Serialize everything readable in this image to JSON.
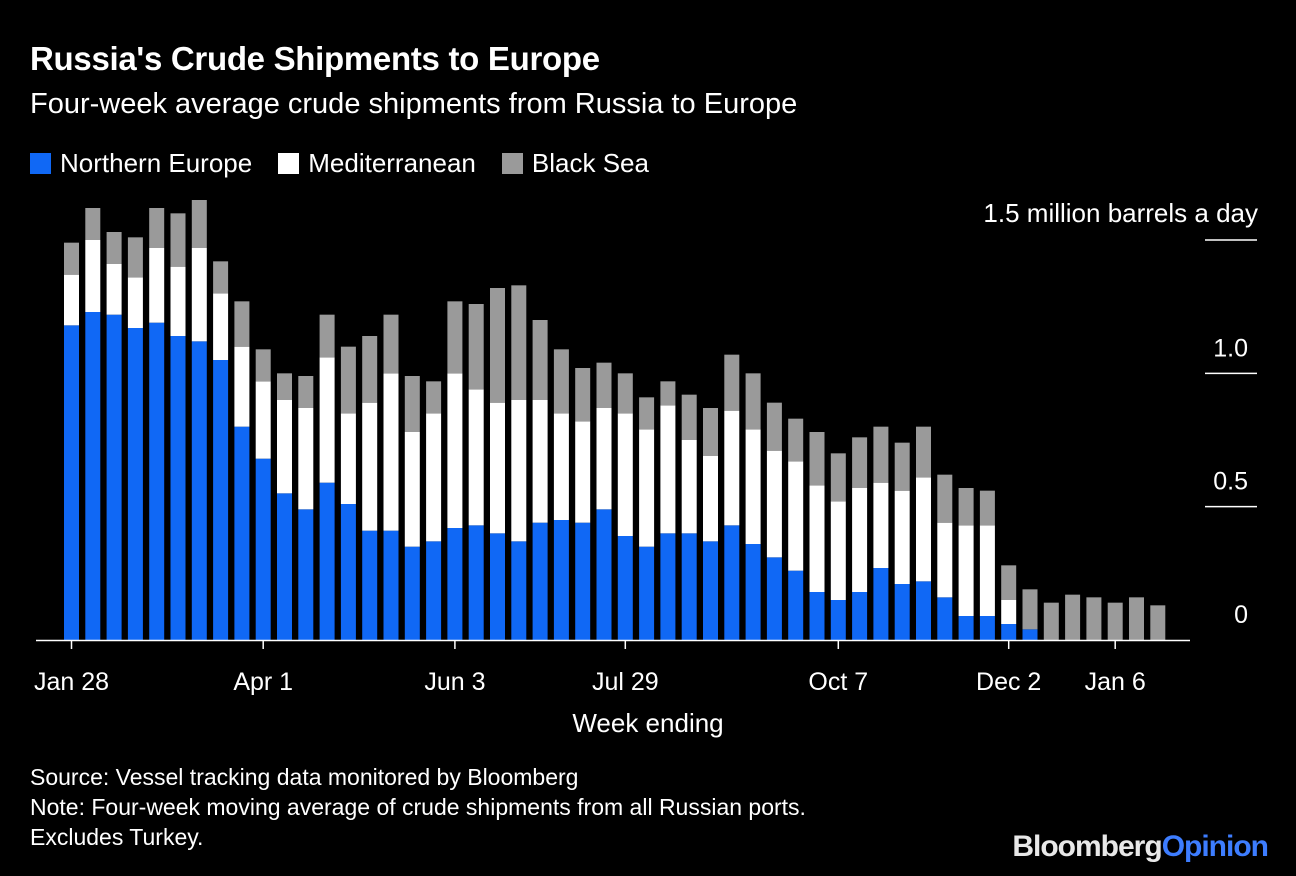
{
  "title": "Russia's Crude Shipments to Europe",
  "subtitle": "Four-week average crude shipments from Russia to Europe",
  "source": "Source: Vessel tracking data monitored by Bloomberg",
  "note_line1": "Note: Four-week moving average of crude shipments from all Russian ports.",
  "note_line2": "Excludes Turkey.",
  "logo": {
    "part1": "Bloomberg",
    "part2": "Opinion"
  },
  "colors": {
    "northern": "#1068f5",
    "mediterranean": "#ffffff",
    "black_sea": "#9a9a9a",
    "background": "#000000"
  },
  "chart_data": {
    "type": "bar",
    "stacked": true,
    "title": "Russia's Crude Shipments to Europe",
    "subtitle": "Four-week average crude shipments from Russia to Europe",
    "xlabel": "Week ending",
    "ylabel": "1.5 million barrels a day",
    "ylim": [
      0,
      1.5
    ],
    "yticks": [
      {
        "value": 0,
        "label": "0"
      },
      {
        "value": 0.5,
        "label": "0.5"
      },
      {
        "value": 1.0,
        "label": "1.0"
      },
      {
        "value": 1.5,
        "label": "1.5 million barrels a day"
      }
    ],
    "xtick_labels": [
      {
        "index": 0,
        "label": "Jan 28"
      },
      {
        "index": 9,
        "label": "Apr 1"
      },
      {
        "index": 18,
        "label": "Jun 3"
      },
      {
        "index": 26,
        "label": "Jul 29"
      },
      {
        "index": 36,
        "label": "Oct 7"
      },
      {
        "index": 44,
        "label": "Dec 2"
      },
      {
        "index": 49,
        "label": "Jan 6"
      }
    ],
    "legend": [
      "Northern Europe",
      "Mediterranean",
      "Black Sea"
    ],
    "series": [
      {
        "name": "Northern Europe",
        "values": [
          1.18,
          1.23,
          1.22,
          1.17,
          1.19,
          1.14,
          1.12,
          1.05,
          0.8,
          0.68,
          0.55,
          0.49,
          0.59,
          0.51,
          0.41,
          0.41,
          0.35,
          0.37,
          0.42,
          0.43,
          0.4,
          0.37,
          0.44,
          0.45,
          0.44,
          0.49,
          0.39,
          0.35,
          0.4,
          0.4,
          0.37,
          0.43,
          0.36,
          0.31,
          0.26,
          0.18,
          0.15,
          0.18,
          0.27,
          0.21,
          0.22,
          0.16,
          0.09,
          0.09,
          0.06,
          0.04,
          0,
          0,
          0,
          0,
          0,
          0,
          0
        ]
      },
      {
        "name": "Mediterranean",
        "values": [
          0.19,
          0.27,
          0.19,
          0.19,
          0.28,
          0.26,
          0.35,
          0.25,
          0.3,
          0.29,
          0.35,
          0.38,
          0.47,
          0.34,
          0.48,
          0.59,
          0.43,
          0.48,
          0.58,
          0.51,
          0.49,
          0.53,
          0.46,
          0.4,
          0.38,
          0.38,
          0.46,
          0.44,
          0.48,
          0.35,
          0.32,
          0.43,
          0.43,
          0.4,
          0.41,
          0.4,
          0.37,
          0.39,
          0.32,
          0.35,
          0.39,
          0.28,
          0.34,
          0.34,
          0.09,
          0,
          0,
          0,
          0,
          0,
          0,
          0,
          0
        ]
      },
      {
        "name": "Black Sea",
        "values": [
          0.12,
          0.12,
          0.12,
          0.15,
          0.15,
          0.2,
          0.18,
          0.12,
          0.17,
          0.12,
          0.1,
          0.12,
          0.16,
          0.25,
          0.25,
          0.22,
          0.21,
          0.12,
          0.27,
          0.32,
          0.43,
          0.43,
          0.3,
          0.24,
          0.2,
          0.17,
          0.15,
          0.12,
          0.09,
          0.17,
          0.18,
          0.21,
          0.21,
          0.18,
          0.16,
          0.2,
          0.18,
          0.19,
          0.21,
          0.18,
          0.19,
          0.18,
          0.14,
          0.13,
          0.13,
          0.15,
          0.14,
          0.17,
          0.16,
          0.14,
          0.16,
          0.13,
          0
        ]
      }
    ]
  }
}
